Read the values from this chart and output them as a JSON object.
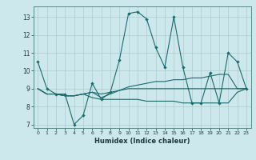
{
  "title": "",
  "xlabel": "Humidex (Indice chaleur)",
  "ylabel": "",
  "bg_color": "#cce8ec",
  "grid_color": "#aacccc",
  "line_color": "#1a6b6b",
  "xlim": [
    -0.5,
    23.5
  ],
  "ylim": [
    6.8,
    13.6
  ],
  "yticks": [
    7,
    8,
    9,
    10,
    11,
    12,
    13
  ],
  "xticks": [
    0,
    1,
    2,
    3,
    4,
    5,
    6,
    7,
    8,
    9,
    10,
    11,
    12,
    13,
    14,
    15,
    16,
    17,
    18,
    19,
    20,
    21,
    22,
    23
  ],
  "series": [
    [
      10.5,
      9.0,
      8.7,
      8.7,
      7.0,
      7.5,
      9.3,
      8.4,
      8.8,
      10.6,
      13.2,
      13.3,
      12.9,
      11.3,
      10.2,
      13.0,
      10.2,
      8.2,
      8.2,
      9.9,
      8.2,
      11.0,
      10.5,
      9.0
    ],
    [
      9.0,
      8.7,
      8.7,
      8.6,
      8.6,
      8.7,
      8.8,
      8.5,
      8.7,
      8.9,
      9.1,
      9.2,
      9.3,
      9.4,
      9.4,
      9.5,
      9.5,
      9.6,
      9.6,
      9.7,
      9.8,
      9.8,
      9.0,
      9.0
    ],
    [
      9.0,
      8.7,
      8.7,
      8.6,
      8.6,
      8.7,
      8.5,
      8.4,
      8.4,
      8.4,
      8.4,
      8.4,
      8.3,
      8.3,
      8.3,
      8.3,
      8.2,
      8.2,
      8.2,
      8.2,
      8.2,
      8.2,
      8.8,
      9.0
    ],
    [
      9.0,
      8.7,
      8.7,
      8.6,
      8.6,
      8.7,
      8.8,
      8.7,
      8.8,
      8.9,
      9.0,
      9.0,
      9.0,
      9.0,
      9.0,
      9.0,
      9.0,
      9.0,
      9.0,
      9.0,
      9.0,
      9.0,
      9.0,
      9.0
    ]
  ]
}
